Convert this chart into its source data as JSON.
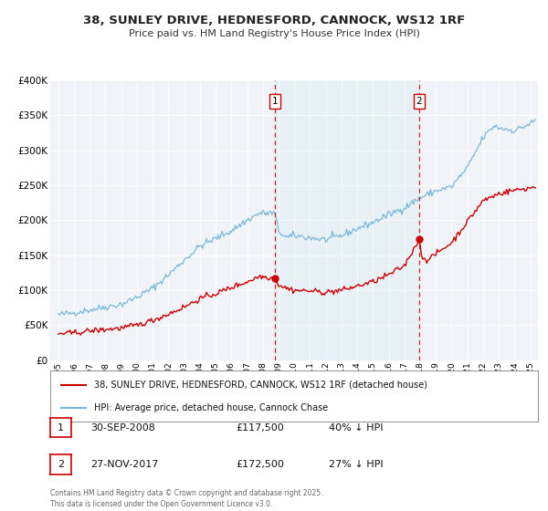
{
  "title": "38, SUNLEY DRIVE, HEDNESFORD, CANNOCK, WS12 1RF",
  "subtitle": "Price paid vs. HM Land Registry's House Price Index (HPI)",
  "background_color": "#ffffff",
  "plot_bg_color": "#f0f4f8",
  "grid_color": "#ffffff",
  "hpi_color": "#7ab8d9",
  "price_color": "#cc0000",
  "marker1_date": 2008.75,
  "marker1_price": 117500,
  "marker2_date": 2017.92,
  "marker2_price": 172500,
  "legend_labels": [
    "38, SUNLEY DRIVE, HEDNESFORD, CANNOCK, WS12 1RF (detached house)",
    "HPI: Average price, detached house, Cannock Chase"
  ],
  "annotation1": [
    "1",
    "30-SEP-2008",
    "£117,500",
    "40% ↓ HPI"
  ],
  "annotation2": [
    "2",
    "27-NOV-2017",
    "£172,500",
    "27% ↓ HPI"
  ],
  "footer": "Contains HM Land Registry data © Crown copyright and database right 2025.\nThis data is licensed under the Open Government Licence v3.0.",
  "ylim": [
    0,
    400000
  ],
  "xlim_start": 1994.5,
  "xlim_end": 2025.5
}
